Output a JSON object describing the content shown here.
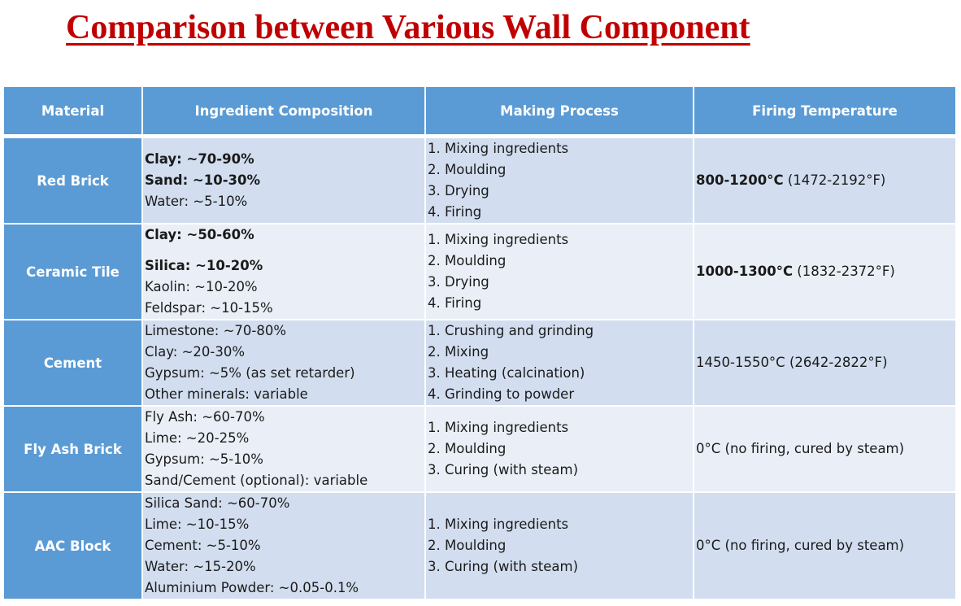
{
  "title": "Comparison between Various Wall Component",
  "table": {
    "headers": [
      "Material",
      "Ingredient Composition",
      "Making Process",
      "Firing Temperature"
    ],
    "rows": [
      {
        "material": "Red Brick",
        "ingredients": [
          {
            "text": "Clay: ~70-90%",
            "bold": true
          },
          {
            "text": "Sand: ~10-30%",
            "bold": true
          },
          {
            "text": "Water: ~5-10%",
            "bold": false
          }
        ],
        "process": [
          "1. Mixing ingredients",
          "2. Moulding",
          "3. Drying",
          "4. Firing"
        ],
        "temp_bold": "800-1200°C",
        "temp_rest": " (1472-2192°F)"
      },
      {
        "material": "Ceramic Tile",
        "ingredients": [
          {
            "text": "Clay: ~50-60%",
            "bold": true
          },
          {
            "text": "Silica: ~10-20%",
            "bold": true
          },
          {
            "text": "Kaolin: ~10-20%",
            "bold": false
          },
          {
            "text": "Feldspar: ~10-15%",
            "bold": false
          }
        ],
        "process": [
          "1. Mixing ingredients",
          "2. Moulding",
          "3. Drying",
          "4. Firing"
        ],
        "temp_bold": "1000-1300°C",
        "temp_rest": " (1832-2372°F)"
      },
      {
        "material": "Cement",
        "ingredients": [
          {
            "text": "Limestone: ~70-80%",
            "bold": false
          },
          {
            "text": "Clay: ~20-30%",
            "bold": false
          },
          {
            "text": "Gypsum: ~5% (as set retarder)",
            "bold": false
          },
          {
            "text": "Other minerals: variable",
            "bold": false
          }
        ],
        "process": [
          "1. Crushing and grinding",
          "2. Mixing",
          "3. Heating (calcination)",
          "4. Grinding to powder"
        ],
        "temp_bold": "",
        "temp_rest": "1450-1550°C (2642-2822°F)"
      },
      {
        "material": "Fly Ash Brick",
        "ingredients": [
          {
            "text": "Fly Ash: ~60-70%",
            "bold": false
          },
          {
            "text": "Lime: ~20-25%",
            "bold": false
          },
          {
            "text": "Gypsum: ~5-10%",
            "bold": false
          },
          {
            "text": "Sand/Cement (optional): variable",
            "bold": false
          }
        ],
        "process": [
          "1. Mixing ingredients",
          "2. Moulding",
          "3. Curing (with steam)"
        ],
        "temp_bold": "",
        "temp_rest": "0°C (no firing, cured by steam)"
      },
      {
        "material": "AAC Block",
        "ingredients": [
          {
            "text": "Silica Sand: ~60-70%",
            "bold": false
          },
          {
            "text": "Lime: ~10-15%",
            "bold": false
          },
          {
            "text": "Cement: ~5-10%",
            "bold": false
          },
          {
            "text": "Water: ~15-20%",
            "bold": false
          },
          {
            "text": "Aluminium Powder: ~0.05-0.1%",
            "bold": false
          }
        ],
        "process": [
          "1. Mixing ingredients",
          "2. Moulding",
          "3. Curing (with steam)"
        ],
        "temp_bold": "",
        "temp_rest": "0°C (no firing, cured by steam)"
      }
    ]
  }
}
